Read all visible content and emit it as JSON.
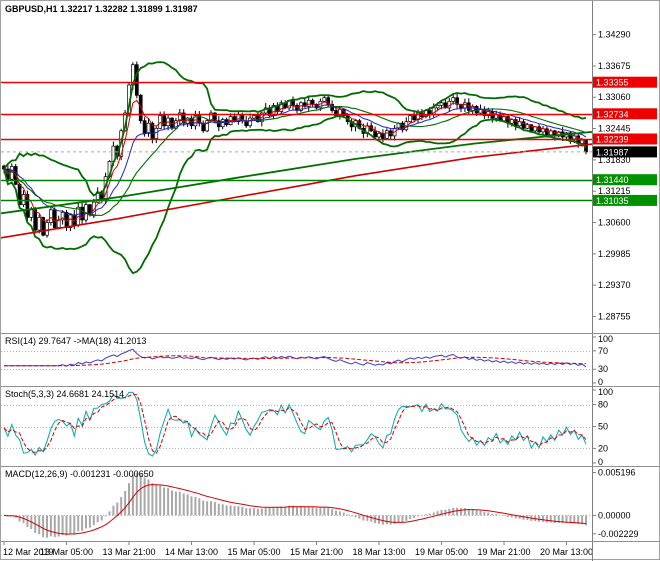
{
  "window": {
    "title": "GBPUSD,H1 1.32217 1.32282 1.31899 1.31987"
  },
  "colors": {
    "background": "#ffffff",
    "border": "#a0a0a0",
    "axis_line": "#808080",
    "grid_dotted": "#b0b0b0",
    "candle_up_fill": "#ffffff",
    "candle_down_fill": "#000000",
    "candle_outline": "#000000",
    "bollinger": "#006b00",
    "ma_fast_red": "#d40000",
    "ma_fast_blue": "#2222cc",
    "resistance_line": "#ee0000",
    "support_line": "#008000",
    "badge_resistance": "#ee0000",
    "badge_support": "#009000",
    "badge_current": "#000000",
    "badge_text": "#ffffff",
    "rsi_line": "#3b3bd6",
    "rsi_ma_line": "#d40000",
    "stoch_k_line": "#00a8b0",
    "stoch_d_line": "#d40000",
    "macd_hist": "#a8a8a8",
    "macd_signal": "#d40000",
    "tick_text": "#000000"
  },
  "chart_data": {
    "type": "candlestick",
    "symbol": "GBPUSD",
    "timeframe": "H1",
    "title": "GBPUSD,H1 1.32217 1.32282 1.31899 1.31987",
    "last_ohlc": {
      "open": "1.32217",
      "high": "1.32282",
      "low": "1.31899",
      "close": "1.31987"
    },
    "price_axis": {
      "min": 1.2843,
      "max": 1.3495,
      "ticks": [
        "1.34290",
        "1.33675",
        "1.33060",
        "1.32445",
        "1.31830",
        "1.31215",
        "1.30600",
        "1.29985",
        "1.29370",
        "1.28755"
      ]
    },
    "x_axis": {
      "labels": [
        "12 Mar 2019",
        "13 Mar 05:00",
        "13 Mar 21:00",
        "14 Mar 13:00",
        "15 Mar 05:00",
        "15 Mar 21:00",
        "18 Mar 13:00",
        "19 Mar 05:00",
        "19 Mar 21:00",
        "20 Mar 13:00"
      ],
      "label_indices": [
        0,
        16,
        32,
        48,
        64,
        80,
        96,
        112,
        128,
        144
      ]
    },
    "closes": [
      1.3165,
      1.3145,
      1.317,
      1.3135,
      1.3095,
      1.3115,
      1.307,
      1.3085,
      1.3045,
      1.307,
      1.3035,
      1.306,
      1.3085,
      1.305,
      1.3065,
      1.308,
      1.305,
      1.3075,
      1.3055,
      1.309,
      1.3065,
      1.3095,
      1.3075,
      1.31,
      1.312,
      1.3105,
      1.315,
      1.318,
      1.321,
      1.319,
      1.324,
      1.3275,
      1.333,
      1.337,
      1.331,
      1.326,
      1.3235,
      1.3255,
      1.3225,
      1.3245,
      1.327,
      1.325,
      1.3265,
      1.3245,
      1.326,
      1.3275,
      1.3255,
      1.3265,
      1.325,
      1.327,
      1.3255,
      1.324,
      1.326,
      1.3275,
      1.326,
      1.3248,
      1.3262,
      1.3252,
      1.3268,
      1.3258,
      1.3272,
      1.326,
      1.325,
      1.3265,
      1.327,
      1.3258,
      1.3275,
      1.3285,
      1.327,
      1.329,
      1.3278,
      1.3295,
      1.3285,
      1.33,
      1.329,
      1.328,
      1.3295,
      1.3288,
      1.33,
      1.3292,
      1.3285,
      1.3298,
      1.3305,
      1.3292,
      1.328,
      1.327,
      1.3282,
      1.327,
      1.3258,
      1.3248,
      1.326,
      1.3245,
      1.3235,
      1.325,
      1.324,
      1.3228,
      1.3235,
      1.3225,
      1.324,
      1.323,
      1.3245,
      1.3255,
      1.3242,
      1.3258,
      1.327,
      1.3262,
      1.3275,
      1.3268,
      1.328,
      1.3272,
      1.3285,
      1.329,
      1.3295,
      1.3285,
      1.3298,
      1.3305,
      1.3292,
      1.3285,
      1.3295,
      1.328,
      1.3288,
      1.3275,
      1.3282,
      1.327,
      1.3278,
      1.3265,
      1.3272,
      1.326,
      1.3268,
      1.3255,
      1.3262,
      1.325,
      1.3258,
      1.3245,
      1.3252,
      1.324,
      1.3248,
      1.3238,
      1.3244,
      1.3232,
      1.324,
      1.323,
      1.3238,
      1.3228,
      1.3236,
      1.3224,
      1.323,
      1.3215,
      1.32217,
      1.31987
    ],
    "levels": {
      "resistance": [
        1.33355,
        1.32734,
        1.32239
      ],
      "support": [
        1.3144,
        1.31035
      ],
      "current": 1.31987
    },
    "level_labels": {
      "resistance": [
        "1.33355",
        "1.32734",
        "1.32239"
      ],
      "support": [
        "1.31440",
        "1.31035"
      ],
      "current": "1.31987"
    },
    "overlays": {
      "bollinger_period": 20,
      "bollinger_dev": 2,
      "ma_fast": 5,
      "ma_medium": 13,
      "trend_lines": [
        {
          "name": "long-ma-green-line",
          "color": "#007000",
          "width": 1.8,
          "points": [
            [
              0,
              1.3078
            ],
            [
              0.2,
              1.311
            ],
            [
              0.4,
              1.3148
            ],
            [
              0.6,
              1.3185
            ],
            [
              0.8,
              1.3215
            ],
            [
              1,
              1.3238
            ]
          ]
        },
        {
          "name": "long-ma-red-line",
          "color": "#cc0000",
          "width": 1.6,
          "points": [
            [
              0,
              1.303
            ],
            [
              0.2,
              1.3068
            ],
            [
              0.4,
              1.311
            ],
            [
              0.6,
              1.3152
            ],
            [
              0.8,
              1.3188
            ],
            [
              1,
              1.3214
            ]
          ]
        }
      ]
    },
    "panels": {
      "rsi": {
        "label": "RSI(14) 29.7647 ->MA(18) 41.2013",
        "period": 14,
        "ma_period": 18,
        "ticks": [
          100,
          70,
          30,
          0
        ],
        "levels": [
          70,
          30
        ],
        "range": [
          0,
          100
        ]
      },
      "stoch": {
        "label": "Stoch(5,3,3) 24.6681 24.1514",
        "k": 5,
        "slow": 3,
        "d": 3,
        "ticks": [
          100,
          80,
          50,
          20,
          0
        ],
        "levels": [
          80,
          50,
          20
        ],
        "range": [
          0,
          100
        ]
      },
      "macd": {
        "label": "MACD(12,26,9) -0.001231 -0.000650",
        "fast": 12,
        "slow": 26,
        "signal": 9,
        "tick_labels": [
          "0.005196",
          "0.00000",
          "-0.002229"
        ],
        "tick_values": [
          0.005196,
          0,
          -0.002229
        ]
      }
    }
  }
}
